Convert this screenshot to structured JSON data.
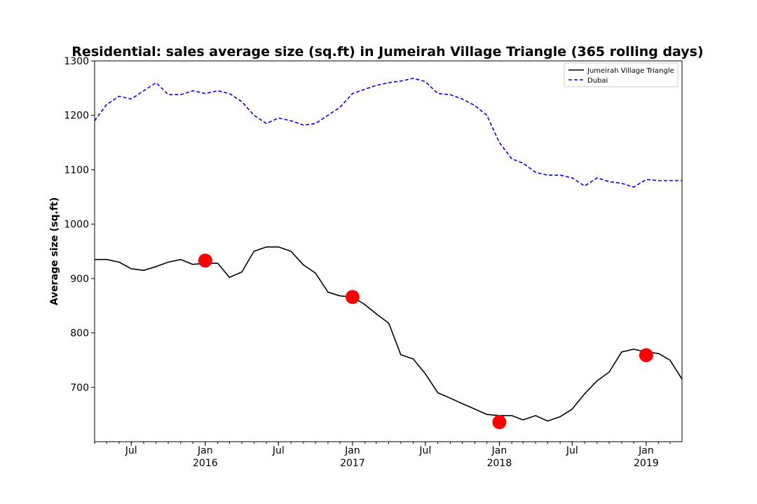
{
  "chart_data": {
    "type": "line",
    "title": "Residential: sales average size (sq.ft) in Jumeirah Village Triangle (365 rolling days)",
    "xlabel": "",
    "ylabel": "Average size (sq.ft)",
    "ylim": [
      600,
      1300
    ],
    "xlim": [
      "2015-04-01",
      "2019-03-31"
    ],
    "y_ticks": [
      700,
      800,
      900,
      1000,
      1100,
      1200,
      1300
    ],
    "x_ticks": [
      {
        "date": "2015-07-01",
        "label": "Jul",
        "sub": ""
      },
      {
        "date": "2016-01-01",
        "label": "Jan",
        "sub": "2016"
      },
      {
        "date": "2016-07-01",
        "label": "Jul",
        "sub": ""
      },
      {
        "date": "2017-01-01",
        "label": "Jan",
        "sub": "2017"
      },
      {
        "date": "2017-07-01",
        "label": "Jul",
        "sub": ""
      },
      {
        "date": "2018-01-01",
        "label": "Jan",
        "sub": "2018"
      },
      {
        "date": "2018-07-01",
        "label": "Jul",
        "sub": ""
      },
      {
        "date": "2019-01-01",
        "label": "Jan",
        "sub": "2019"
      }
    ],
    "legend_position": "top-right",
    "grid": false,
    "series": [
      {
        "name": "Jumeirah Village Triangle",
        "color": "#000000",
        "style": "solid",
        "x": [
          "2015-04-01",
          "2015-05-01",
          "2015-06-01",
          "2015-07-01",
          "2015-08-01",
          "2015-09-01",
          "2015-10-01",
          "2015-11-01",
          "2015-12-01",
          "2016-01-01",
          "2016-02-01",
          "2016-03-01",
          "2016-04-01",
          "2016-05-01",
          "2016-06-01",
          "2016-07-01",
          "2016-08-01",
          "2016-09-01",
          "2016-10-01",
          "2016-11-01",
          "2016-12-01",
          "2017-01-01",
          "2017-02-01",
          "2017-03-01",
          "2017-04-01",
          "2017-05-01",
          "2017-06-01",
          "2017-07-01",
          "2017-08-01",
          "2017-09-01",
          "2017-10-01",
          "2017-11-01",
          "2017-12-01",
          "2018-01-01",
          "2018-02-01",
          "2018-03-01",
          "2018-04-01",
          "2018-05-01",
          "2018-06-01",
          "2018-07-01",
          "2018-08-01",
          "2018-09-01",
          "2018-10-01",
          "2018-11-01",
          "2018-12-01",
          "2019-01-01",
          "2019-02-01",
          "2019-03-01",
          "2019-03-31"
        ],
        "y": [
          935,
          935,
          930,
          918,
          915,
          922,
          930,
          935,
          926,
          928,
          928,
          902,
          912,
          950,
          958,
          958,
          950,
          925,
          910,
          875,
          868,
          866,
          852,
          835,
          818,
          760,
          752,
          725,
          690,
          680,
          670,
          660,
          650,
          648,
          648,
          640,
          648,
          638,
          646,
          660,
          688,
          712,
          728,
          765,
          770,
          765,
          762,
          750,
          715
        ]
      },
      {
        "name": "Dubai",
        "color": "#0000ff",
        "style": "dashed",
        "x": [
          "2015-04-01",
          "2015-05-01",
          "2015-06-01",
          "2015-07-01",
          "2015-08-01",
          "2015-09-01",
          "2015-10-01",
          "2015-11-01",
          "2015-12-01",
          "2016-01-01",
          "2016-02-01",
          "2016-03-01",
          "2016-04-01",
          "2016-05-01",
          "2016-06-01",
          "2016-07-01",
          "2016-08-01",
          "2016-09-01",
          "2016-10-01",
          "2016-11-01",
          "2016-12-01",
          "2017-01-01",
          "2017-02-01",
          "2017-03-01",
          "2017-04-01",
          "2017-05-01",
          "2017-06-01",
          "2017-07-01",
          "2017-08-01",
          "2017-09-01",
          "2017-10-01",
          "2017-11-01",
          "2017-12-01",
          "2018-01-01",
          "2018-02-01",
          "2018-03-01",
          "2018-04-01",
          "2018-05-01",
          "2018-06-01",
          "2018-07-01",
          "2018-08-01",
          "2018-09-01",
          "2018-10-01",
          "2018-11-01",
          "2018-12-01",
          "2019-01-01",
          "2019-02-01",
          "2019-03-01",
          "2019-03-31"
        ],
        "y": [
          1190,
          1220,
          1235,
          1230,
          1245,
          1260,
          1238,
          1238,
          1245,
          1240,
          1245,
          1240,
          1225,
          1200,
          1185,
          1195,
          1190,
          1182,
          1185,
          1200,
          1215,
          1240,
          1248,
          1255,
          1260,
          1263,
          1268,
          1262,
          1240,
          1238,
          1230,
          1218,
          1200,
          1150,
          1120,
          1112,
          1095,
          1090,
          1090,
          1085,
          1070,
          1085,
          1078,
          1075,
          1068,
          1082,
          1080,
          1080,
          1080
        ]
      }
    ],
    "markers": {
      "color": "#ff0000",
      "x": [
        "2016-01-01",
        "2017-01-01",
        "2018-01-01",
        "2019-01-01"
      ],
      "y": [
        933,
        866,
        636,
        759
      ]
    }
  }
}
